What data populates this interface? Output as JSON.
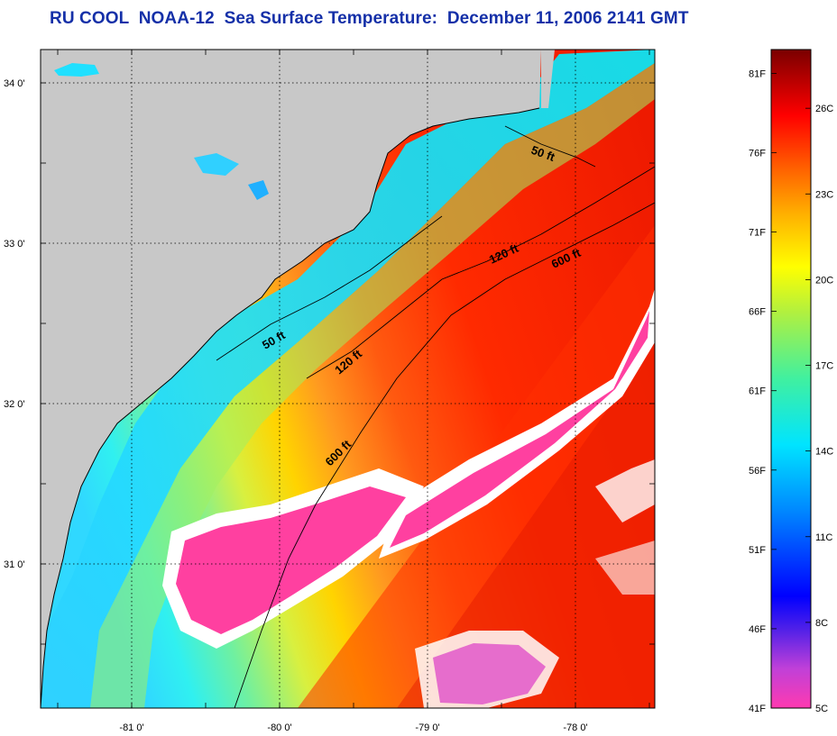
{
  "title": "RU COOL  NOAA-12  Sea Surface Temperature:  December 11, 2006 2141 GMT",
  "map": {
    "lat_labels": [
      {
        "lat": 34,
        "text": "34 0'"
      },
      {
        "lat": 33,
        "text": "33 0'"
      },
      {
        "lat": 32,
        "text": "32 0'"
      },
      {
        "lat": 31,
        "text": "31 0'"
      }
    ],
    "lon_labels": [
      {
        "lon": -81,
        "text": "-81 0'"
      },
      {
        "lon": -80,
        "text": "-80 0'"
      },
      {
        "lon": -79,
        "text": "-79 0'"
      },
      {
        "lon": -78,
        "text": "-78 0'"
      }
    ],
    "contours": [
      {
        "text": "50 ft"
      },
      {
        "text": "50 ft"
      },
      {
        "text": "120 ft"
      },
      {
        "text": "120 ft"
      },
      {
        "text": "600 ft"
      },
      {
        "text": "600 ft"
      }
    ]
  },
  "colorbar": {
    "fahrenheit_labels": [
      "81F",
      "76F",
      "71F",
      "66F",
      "61F",
      "56F",
      "51F",
      "46F",
      "41F"
    ],
    "celsius_labels": [
      "26C",
      "23C",
      "20C",
      "17C",
      "14C",
      "11C",
      "8C",
      "5C"
    ],
    "range_f": [
      41,
      82.5
    ],
    "colors": {
      "land": "#c8c8c8",
      "cloud_mask": "#ff40a0",
      "cloud_edge": "#ffffff"
    }
  }
}
